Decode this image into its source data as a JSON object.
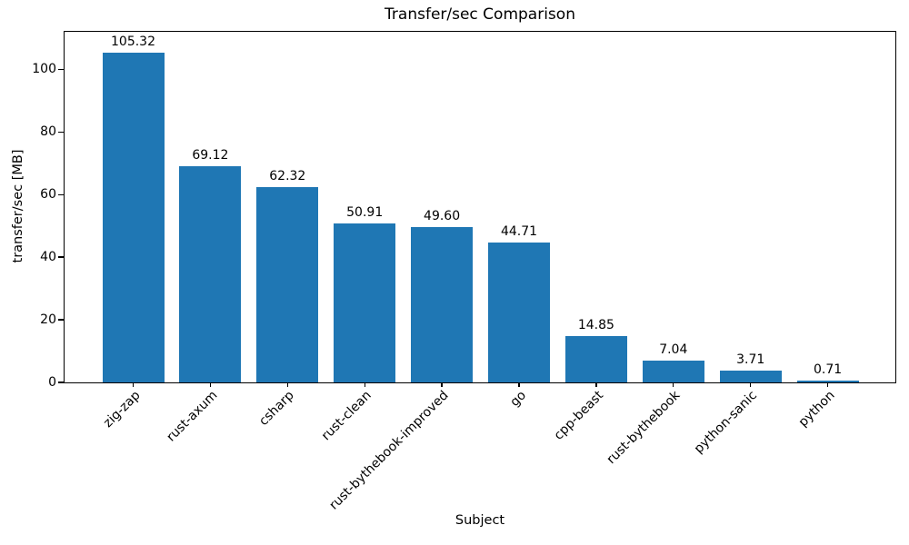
{
  "chart_data": {
    "type": "bar",
    "title": "Transfer/sec Comparison",
    "xlabel": "Subject",
    "ylabel": "transfer/sec [MB]",
    "categories": [
      "zig-zap",
      "rust-axum",
      "csharp",
      "rust-clean",
      "rust-bythebook-improved",
      "go",
      "cpp-beast",
      "rust-bythebook",
      "python-sanic",
      "python"
    ],
    "values": [
      105.32,
      69.12,
      62.32,
      50.91,
      49.6,
      44.71,
      14.85,
      7.04,
      3.71,
      0.71
    ],
    "value_labels": [
      "105.32",
      "69.12",
      "62.32",
      "50.91",
      "49.60",
      "44.71",
      "14.85",
      "7.04",
      "3.71",
      "0.71"
    ],
    "yticks": [
      0,
      20,
      40,
      60,
      80,
      100
    ],
    "ylim": [
      0,
      112
    ],
    "bar_color": "#1f77b4",
    "grid": false,
    "legend": "none",
    "xtick_rotation_deg": 45
  }
}
